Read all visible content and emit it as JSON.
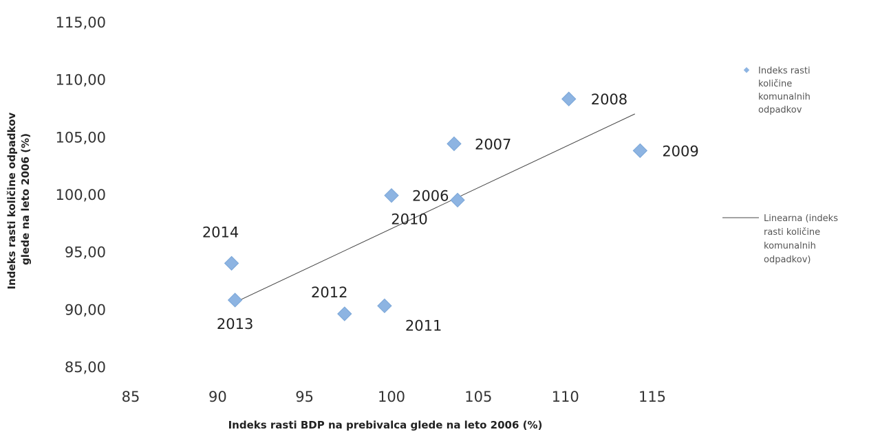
{
  "chart_data": {
    "type": "scatter",
    "xlabel": "Indeks rasti BDP na prebivalca glede na leto 2006 (%)",
    "ylabel_lines": [
      "Indeks rasti količine odpadkov",
      "glede na leto 2006 (%)"
    ],
    "xlim": [
      85,
      115
    ],
    "ylim": [
      85,
      115
    ],
    "x_ticks": [
      {
        "value": 85,
        "label": "85"
      },
      {
        "value": 90,
        "label": "90"
      },
      {
        "value": 95,
        "label": "95"
      },
      {
        "value": 100,
        "label": "100"
      },
      {
        "value": 105,
        "label": "105"
      },
      {
        "value": 110,
        "label": "110"
      },
      {
        "value": 115,
        "label": "115"
      }
    ],
    "y_ticks": [
      {
        "value": 85,
        "label": "85,00"
      },
      {
        "value": 90,
        "label": "90,00"
      },
      {
        "value": 95,
        "label": "95,00"
      },
      {
        "value": 100,
        "label": "100,00"
      },
      {
        "value": 105,
        "label": "105,00"
      },
      {
        "value": 110,
        "label": "110,00"
      },
      {
        "value": 115,
        "label": "115,00"
      }
    ],
    "grid": false,
    "marker_color": "#8db4e2",
    "trendline_color": "#444444",
    "series": [
      {
        "name": "Indeks rasti količine komunalnih odpadkov",
        "points": [
          {
            "label": "2006",
            "x": 100.0,
            "y": 99.9
          },
          {
            "label": "2007",
            "x": 103.6,
            "y": 104.4
          },
          {
            "label": "2008",
            "x": 110.2,
            "y": 108.3
          },
          {
            "label": "2009",
            "x": 114.3,
            "y": 103.8
          },
          {
            "label": "2010",
            "x": 103.8,
            "y": 99.5
          },
          {
            "label": "2011",
            "x": 99.6,
            "y": 90.3
          },
          {
            "label": "2012",
            "x": 97.3,
            "y": 89.6
          },
          {
            "label": "2013",
            "x": 91.0,
            "y": 90.8
          },
          {
            "label": "2014",
            "x": 90.8,
            "y": 94.0
          }
        ]
      }
    ],
    "trendline": {
      "name": "Linearna (Indeks rasti količine komunalnih odpadkov)",
      "x": [
        91.0,
        114.0
      ],
      "y": [
        90.6,
        107.0
      ]
    },
    "legend": {
      "position": "right",
      "marker_lines": [
        "Indeks rasti",
        "količine",
        "komunalnih",
        "odpadkov"
      ],
      "line_lines": [
        "Linearna (indeks",
        "rasti količine",
        "komunalnih",
        "odpadkov)"
      ]
    }
  }
}
